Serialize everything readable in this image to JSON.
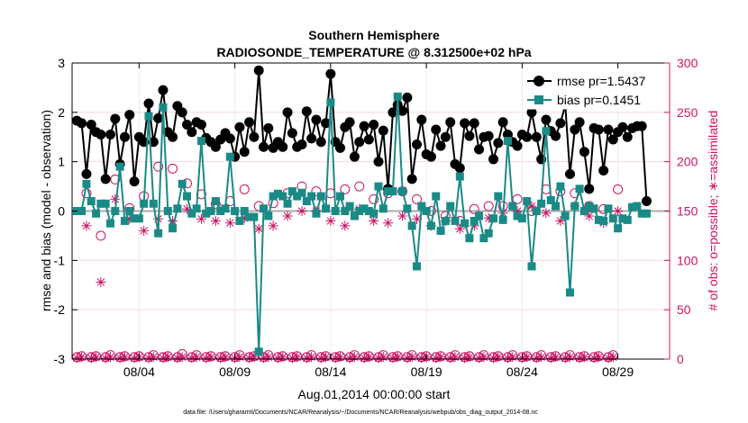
{
  "chart_data": {
    "type": "line",
    "title": "Southern Hemisphere",
    "subtitle": "RADIOSONDE_TEMPERATURE @ 8.312500e+02 hPa",
    "xlabel": "Aug.01,2014 00:00:00 start",
    "ylabel": "rmse and bias (model - observation)",
    "ylabel_right": "# of obs: o=possible; ∗=assimilated",
    "footer": "data file: /Users/gharamti/Documents/NCAR/Reanalysis/~/Documents/NCAR/Reanalysis/webpub/obs_diag_output_2014-08.nc",
    "xlim": [
      0.5,
      31.7
    ],
    "ylim": [
      -3,
      3
    ],
    "ylim_right": [
      0,
      300
    ],
    "xticks": [
      4,
      9,
      14,
      19,
      24,
      29
    ],
    "xtick_labels": [
      "08/04",
      "08/09",
      "08/14",
      "08/19",
      "08/24",
      "08/29"
    ],
    "yticks": [
      -3,
      -2,
      -1,
      0,
      1,
      2,
      3
    ],
    "ytick_labels": [
      "-3",
      "-2",
      "-1",
      "0",
      "1",
      "2",
      "3"
    ],
    "yticks_right": [
      0,
      50,
      100,
      150,
      200,
      250,
      300
    ],
    "ytick_labels_right": [
      "0",
      "50",
      "100",
      "150",
      "200",
      "250",
      "300"
    ],
    "legend": {
      "position": "top-right",
      "rmse_label": "rmse pr=1.5437",
      "bias_label": "bias pr=0.1451"
    },
    "colors": {
      "rmse": "#000000",
      "bias": "#1a8a86",
      "obs": "#cc1466",
      "right_axis": "#cc1466",
      "grid_zero": "#aaaaaa"
    },
    "x_start": 0.75,
    "x_step": 0.25,
    "series": [
      {
        "name": "rmse",
        "values": [
          1.83,
          1.78,
          0.75,
          1.75,
          1.6,
          1.55,
          0.65,
          1.55,
          1.87,
          0.95,
          1.5,
          1.95,
          0.6,
          1.5,
          1.4,
          2.18,
          1.4,
          1.88,
          2.45,
          1.6,
          1.5,
          2.13,
          2.0,
          1.75,
          1.6,
          1.8,
          1.75,
          1.48,
          1.4,
          1.3,
          1.45,
          1.58,
          1.47,
          1.1,
          1.7,
          1.2,
          1.8,
          1.5,
          2.85,
          1.3,
          1.68,
          1.28,
          1.4,
          1.3,
          2.0,
          1.58,
          1.3,
          1.35,
          2.02,
          1.47,
          1.85,
          1.4,
          1.78,
          2.78,
          1.4,
          1.28,
          1.7,
          1.8,
          1.1,
          1.4,
          1.72,
          1.45,
          1.75,
          1.0,
          1.63,
          0.45,
          2.0,
          2.15,
          2.03,
          2.3,
          0.65,
          1.35,
          1.85,
          1.15,
          1.1,
          1.65,
          1.32,
          1.5,
          1.8,
          0.95,
          0.87,
          1.78,
          1.52,
          1.78,
          1.25,
          1.5,
          1.52,
          1.05,
          1.38,
          1.8,
          1.55,
          1.4,
          1.32,
          1.55,
          1.5,
          2.0,
          1.5,
          1.05,
          1.85,
          1.62,
          1.52,
          1.78,
          2.15,
          0.75,
          1.65,
          1.8,
          1.2,
          0.45,
          1.68,
          1.65,
          0.82,
          1.65,
          1.45,
          1.6,
          1.7,
          1.5,
          1.68,
          1.72,
          1.72,
          0.2
        ],
        "marker": "filled-circle"
      },
      {
        "name": "bias",
        "values": [
          0.0,
          0.0,
          0.55,
          0.2,
          -0.05,
          0.15,
          0.15,
          -0.25,
          0.0,
          0.9,
          -0.2,
          0.0,
          -0.15,
          -0.15,
          0.15,
          1.92,
          0.15,
          -0.45,
          2.1,
          0.0,
          -0.35,
          0.05,
          0.55,
          0.3,
          -0.05,
          0.05,
          1.42,
          -0.05,
          0.0,
          0.2,
          0.0,
          0.05,
          1.1,
          0.0,
          -0.2,
          0.0,
          -0.12,
          -0.12,
          -2.85,
          0.05,
          -0.1,
          0.3,
          0.35,
          0.3,
          0.15,
          0.4,
          0.3,
          0.37,
          0.2,
          0.3,
          -0.05,
          0.3,
          0.05,
          2.2,
          0.0,
          0.3,
          0.0,
          0.1,
          -0.1,
          0.0,
          0.05,
          0.0,
          -0.05,
          0.5,
          0.05,
          0.4,
          0.4,
          2.32,
          0.4,
          0.05,
          -0.3,
          -1.12,
          0.1,
          0.0,
          -0.3,
          0.3,
          -0.4,
          -0.2,
          0.1,
          -0.2,
          0.7,
          -0.25,
          -0.55,
          -0.2,
          -0.1,
          -0.55,
          -0.45,
          -0.15,
          0.3,
          -0.18,
          1.42,
          0.1,
          -0.1,
          -0.15,
          0.2,
          -1.12,
          0.0,
          0.15,
          1.62,
          0.22,
          0.1,
          0.5,
          -0.1,
          -1.65,
          0.1,
          0.45,
          0.0,
          0.1,
          0.05,
          -0.18,
          -0.2,
          0.05,
          -0.15,
          -0.35,
          -0.15,
          -0.18,
          0.08,
          0.1,
          -0.05,
          -0.05
        ],
        "marker": "filled-square"
      },
      {
        "name": "obs_possible",
        "axis": "right",
        "values": [
          2,
          3,
          168,
          2,
          3,
          125,
          2,
          4,
          182,
          2,
          3,
          153,
          2,
          3,
          165,
          2,
          4,
          195,
          2,
          3,
          193,
          2,
          5,
          178,
          2,
          4,
          167,
          2,
          3,
          157,
          2,
          3,
          160,
          2,
          4,
          172,
          2,
          3,
          155,
          2,
          4,
          158,
          2,
          3,
          168,
          2,
          3,
          175,
          2,
          4,
          170,
          2,
          3,
          168,
          2,
          3,
          172,
          2,
          4,
          175,
          2,
          3,
          162,
          2,
          4,
          168,
          2,
          3,
          170,
          2,
          4,
          162,
          2,
          3,
          150,
          2,
          3,
          145,
          2,
          4,
          140,
          2,
          3,
          152,
          2,
          4,
          155,
          2,
          3,
          155,
          2,
          4,
          162,
          2,
          3,
          150,
          2,
          4,
          172,
          2,
          3,
          170,
          2,
          4,
          168,
          2,
          3,
          155,
          2,
          3,
          152,
          2,
          4,
          172
        ],
        "marker": "open-circle"
      },
      {
        "name": "obs_assimilated",
        "axis": "right",
        "values": [
          1,
          2,
          135,
          1,
          2,
          78,
          1,
          2,
          162,
          1,
          2,
          142,
          1,
          2,
          130,
          1,
          2,
          142,
          1,
          2,
          140,
          1,
          2,
          152,
          1,
          2,
          142,
          1,
          2,
          140,
          1,
          2,
          138,
          1,
          2,
          143,
          1,
          2,
          132,
          1,
          2,
          135,
          1,
          2,
          145,
          1,
          2,
          150,
          1,
          2,
          150,
          1,
          2,
          140,
          1,
          2,
          135,
          1,
          2,
          152,
          1,
          2,
          140,
          1,
          2,
          138,
          1,
          2,
          145,
          1,
          2,
          142,
          1,
          2,
          135,
          1,
          2,
          140,
          1,
          2,
          132,
          1,
          2,
          135,
          1,
          2,
          143,
          1,
          2,
          148,
          1,
          2,
          150,
          1,
          2,
          155,
          1,
          2,
          148,
          1,
          2,
          140,
          1,
          2,
          155,
          1,
          2,
          145,
          1,
          2,
          138,
          1,
          2,
          150
        ],
        "marker": "asterisk"
      }
    ]
  }
}
